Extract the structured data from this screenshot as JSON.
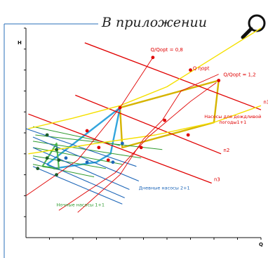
{
  "header": {
    "title": "В приложении",
    "search_icon": "search-icon"
  },
  "chart_data": {
    "type": "line",
    "title": "",
    "xlabel": "Q",
    "ylabel": "H",
    "xlim": [
      0,
      100
    ],
    "ylim": [
      0,
      100
    ],
    "grid": false,
    "curves": [
      {
        "id": "n1",
        "label": "n1",
        "kind": "pump-curve",
        "color": "#e00000",
        "points": [
          [
            25,
            93
          ],
          [
            100,
            61
          ]
        ]
      },
      {
        "id": "n2",
        "label": "n2",
        "kind": "pump-curve",
        "color": "#e00000",
        "points": [
          [
            21,
            68
          ],
          [
            83,
            40
          ]
        ]
      },
      {
        "id": "n3",
        "label": "n3",
        "kind": "pump-curve",
        "color": "#e00000",
        "points": [
          [
            1,
            59
          ],
          [
            79,
            26
          ]
        ]
      },
      {
        "id": "sys-upper",
        "kind": "system-curve",
        "color": "#f5e000",
        "points": [
          [
            1,
            52
          ],
          [
            20,
            57
          ],
          [
            40,
            63
          ],
          [
            60,
            72
          ],
          [
            80,
            86
          ],
          [
            100,
            100
          ]
        ]
      },
      {
        "id": "sys-lower",
        "kind": "system-curve",
        "color": "#f5e000",
        "points": [
          [
            1,
            40
          ],
          [
            30,
            45
          ],
          [
            55,
            49
          ],
          [
            80,
            55
          ],
          [
            100,
            63
          ]
        ]
      },
      {
        "id": "rain-envelope",
        "kind": "operating-area",
        "color": "#d6b400",
        "points": [
          [
            40,
            62
          ],
          [
            82,
            75
          ],
          [
            80,
            55
          ],
          [
            41,
            43
          ],
          [
            40,
            62
          ]
        ]
      },
      {
        "id": "day-envelope",
        "kind": "operating-area",
        "color": "#33a5dd",
        "points": [
          [
            9,
            35
          ],
          [
            40,
            62
          ],
          [
            36,
            40
          ],
          [
            30,
            36
          ],
          [
            12,
            33
          ],
          [
            9,
            35
          ]
        ]
      },
      {
        "id": "night-envelope",
        "kind": "operating-area",
        "color": "#55bb55",
        "points": [
          [
            7,
            34
          ],
          [
            13,
            45
          ],
          [
            14,
            33
          ],
          [
            7,
            34
          ]
        ]
      }
    ],
    "day_pump_curves": [
      [
        [
          0,
          52
        ],
        [
          47,
          34
        ]
      ],
      [
        [
          3,
          48
        ],
        [
          48,
          27
        ]
      ],
      [
        [
          3,
          43
        ],
        [
          44,
          23
        ]
      ],
      [
        [
          3,
          38
        ],
        [
          42,
          19
        ]
      ],
      [
        [
          3,
          34
        ],
        [
          41,
          16
        ]
      ]
    ],
    "night_pump_curves": [
      [
        [
          3,
          53
        ],
        [
          40,
          44
        ]
      ],
      [
        [
          4,
          49
        ],
        [
          58,
          42
        ]
      ],
      [
        [
          3,
          46
        ],
        [
          49,
          38
        ]
      ],
      [
        [
          3,
          43
        ],
        [
          41,
          35
        ]
      ],
      [
        [
          3,
          39
        ],
        [
          34,
          33
        ]
      ],
      [
        [
          3,
          35
        ],
        [
          29,
          29
        ]
      ]
    ],
    "qopt_lines": [
      {
        "color": "#e00000",
        "points": [
          [
            0,
            20
          ],
          [
            22,
            37
          ],
          [
            40,
            62
          ],
          [
            54,
            86
          ]
        ]
      },
      {
        "color": "#e00000",
        "points": [
          [
            14,
            13
          ],
          [
            38,
            31
          ],
          [
            52,
            48
          ],
          [
            70,
            65
          ],
          [
            81,
            74
          ]
        ]
      },
      {
        "color": "#e00000",
        "points": [
          [
            22,
            12
          ],
          [
            40,
            30
          ],
          [
            50,
            47
          ],
          [
            58,
            56
          ],
          [
            66,
            70
          ],
          [
            82,
            78
          ]
        ]
      }
    ],
    "markers": [
      {
        "x": 54,
        "y": 86,
        "color": "#e00000"
      },
      {
        "x": 70,
        "y": 80,
        "color": "#e00000"
      },
      {
        "x": 82,
        "y": 75,
        "color": "#e00000"
      },
      {
        "x": 40,
        "y": 62,
        "color": "#e00000"
      },
      {
        "x": 59,
        "y": 56,
        "color": "#e00000"
      },
      {
        "x": 69,
        "y": 49,
        "color": "#e00000"
      },
      {
        "x": 49,
        "y": 43,
        "color": "#e00000"
      },
      {
        "x": 26,
        "y": 51,
        "color": "#e00000"
      },
      {
        "x": 31,
        "y": 43,
        "color": "#e00000"
      },
      {
        "x": 35,
        "y": 37,
        "color": "#e00000"
      },
      {
        "x": 41,
        "y": 45,
        "color": "#1d66b8"
      },
      {
        "x": 37,
        "y": 36,
        "color": "#1d66b8"
      },
      {
        "x": 26,
        "y": 36,
        "color": "#1d66b8"
      },
      {
        "x": 17,
        "y": 38,
        "color": "#1d66b8"
      },
      {
        "x": 9,
        "y": 49,
        "color": "#1a5c2a"
      },
      {
        "x": 13,
        "y": 42,
        "color": "#1a5c2a"
      },
      {
        "x": 14,
        "y": 37,
        "color": "#1a5c2a"
      },
      {
        "x": 9,
        "y": 38,
        "color": "#1a5c2a"
      },
      {
        "x": 13,
        "y": 30,
        "color": "#1a5c2a"
      },
      {
        "x": 5,
        "y": 33,
        "color": "#1a5c2a"
      }
    ],
    "annotations": [
      {
        "id": "qopt08",
        "text": "Q/Qopt = 0,8",
        "x": 53,
        "y": 89,
        "color": "#e00000"
      },
      {
        "id": "qnopt",
        "text": "Q ηopt",
        "x": 71,
        "y": 80,
        "color": "#e00000"
      },
      {
        "id": "qopt12",
        "text": "Q/Qopt = 1,2",
        "x": 84,
        "y": 77,
        "color": "#e00000"
      },
      {
        "id": "n1",
        "text": "n1",
        "x": 101,
        "y": 64,
        "color": "#e00000"
      },
      {
        "id": "n2",
        "text": "n2",
        "x": 84,
        "y": 41,
        "color": "#e00000"
      },
      {
        "id": "n3",
        "text": "n3",
        "x": 80,
        "y": 27,
        "color": "#e00000"
      },
      {
        "id": "rain",
        "text": "Насосы для дождливой погоды1+1",
        "x": 88,
        "y": 57,
        "color": "#e00000"
      },
      {
        "id": "day",
        "text": "Дневные насосы 2+1",
        "x": 48,
        "y": 23,
        "color": "#1d66b8"
      },
      {
        "id": "night",
        "text": "Ночные насосы 1+1",
        "x": 13,
        "y": 15,
        "color": "#2e9a2e"
      }
    ]
  }
}
